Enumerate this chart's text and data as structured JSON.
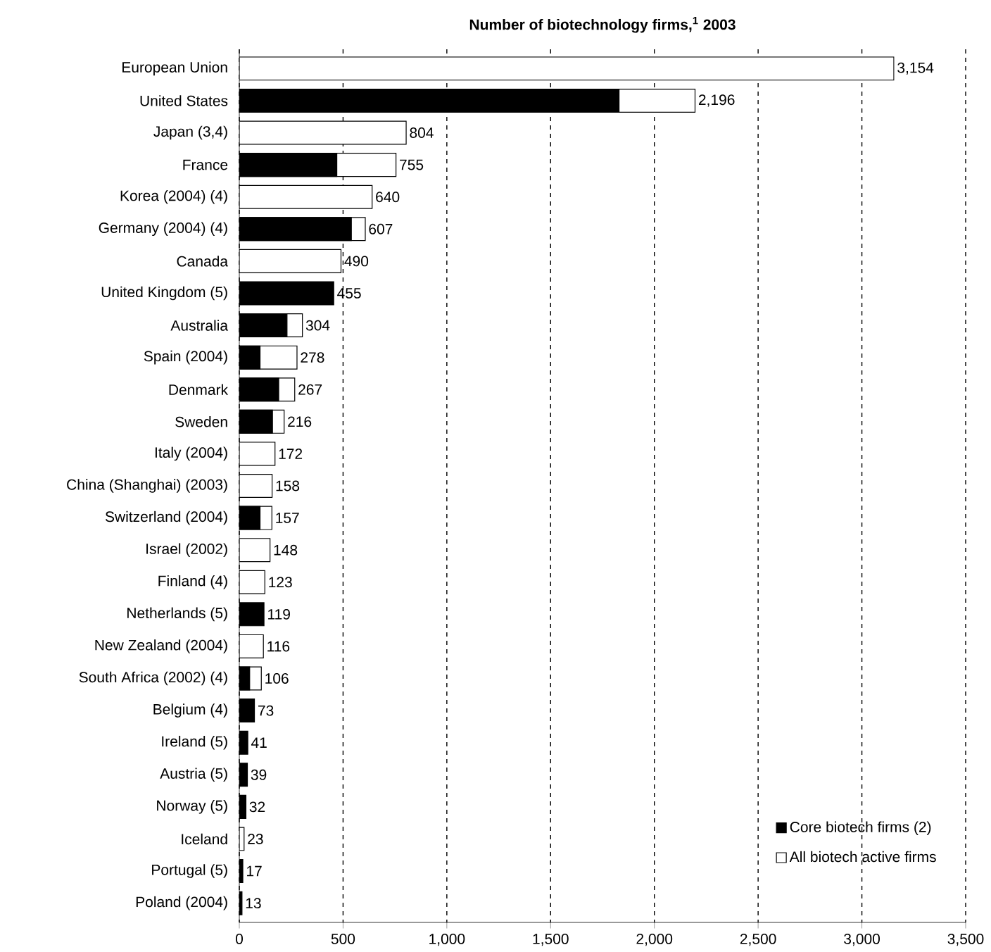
{
  "chart_data": {
    "type": "bar",
    "orientation": "horizontal",
    "title": "Number of biotechnology firms,$^{1}$ 2003",
    "categories": [
      "European Union",
      "United States",
      "Japan (3,4)",
      "France",
      "Korea (2004) (4)",
      "Germany (2004) (4)",
      "Canada",
      "United Kingdom (5)",
      "Australia",
      "Spain (2004)",
      "Denmark",
      "Sweden",
      "Italy (2004)",
      "China (Shanghai) (2003)",
      "Switzerland (2004)",
      "Israel (2002)",
      "Finland (4)",
      "Netherlands (5)",
      "New Zealand (2004)",
      "South Africa (2002) (4)",
      "Belgium (4)",
      "Ireland (5)",
      "Austria (5)",
      "Norway (5)",
      "Iceland",
      "Portugal (5)",
      "Poland (2004)"
    ],
    "series": [
      {
        "name": "Core biotech firms (2)",
        "color": "#000000",
        "values": [
          null,
          1830,
          null,
          470,
          null,
          540,
          null,
          455,
          230,
          100,
          190,
          160,
          null,
          null,
          100,
          null,
          null,
          119,
          null,
          50,
          73,
          41,
          39,
          32,
          null,
          17,
          13
        ],
        "value_labels": [
          null,
          null,
          null,
          null,
          null,
          null,
          null,
          "455",
          null,
          null,
          null,
          null,
          null,
          null,
          null,
          null,
          null,
          "119",
          null,
          null,
          "73",
          "41",
          "39",
          "32",
          null,
          "17",
          "13"
        ]
      },
      {
        "name": "All biotech active firms",
        "color": "#ffffff",
        "values": [
          3154,
          2196,
          804,
          755,
          640,
          607,
          490,
          null,
          304,
          278,
          267,
          216,
          172,
          158,
          157,
          148,
          123,
          null,
          116,
          106,
          null,
          null,
          null,
          null,
          23,
          null,
          null
        ],
        "value_labels": [
          "3,154",
          "2,196",
          "804",
          "755",
          "640",
          "607",
          "490",
          null,
          "304",
          "278",
          "267",
          "216",
          "172",
          "158",
          "157",
          "148",
          "123",
          null,
          "116",
          "106",
          null,
          null,
          null,
          null,
          "23",
          null,
          null
        ]
      }
    ],
    "xlim": [
      0,
      3500
    ],
    "xticks": [
      0,
      500,
      {
        "value": 1000,
        "label": "1,000"
      },
      {
        "value": 1500,
        "label": "1,500"
      },
      {
        "value": 2000,
        "label": "2,000"
      },
      {
        "value": 2500,
        "label": "2,500"
      },
      {
        "value": 3000,
        "label": "3,000"
      },
      {
        "value": 3500,
        "label": "3,500"
      }
    ],
    "grid": "x",
    "legend": "bottom right"
  }
}
